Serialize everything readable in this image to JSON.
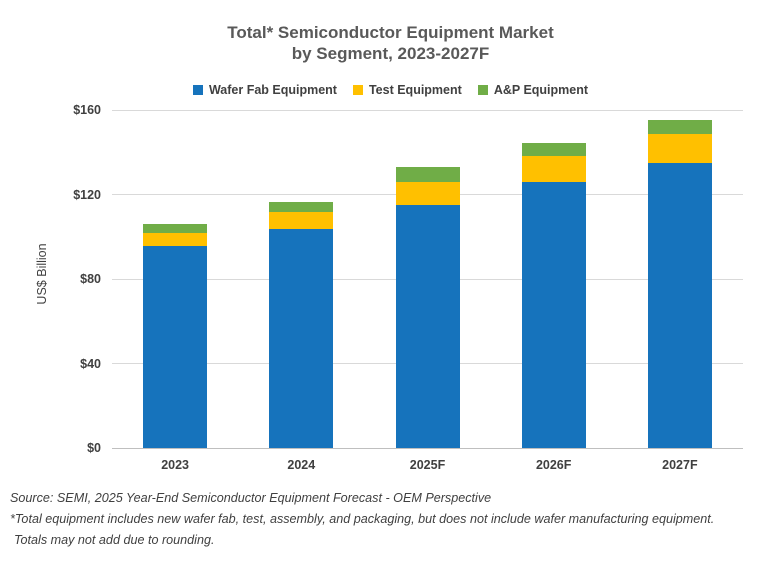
{
  "chart_data": {
    "type": "bar",
    "stacked": true,
    "title": "Total* Semiconductor Equipment Market",
    "subtitle": "by Segment, 2023-2027F",
    "ylabel": "US$ Billion",
    "ylim": [
      0,
      160
    ],
    "yticks": [
      0,
      40,
      80,
      120,
      160
    ],
    "ytick_labels": [
      "$0",
      "$40",
      "$80",
      "$120",
      "$160"
    ],
    "categories": [
      "2023",
      "2024",
      "2025F",
      "2026F",
      "2027F"
    ],
    "series": [
      {
        "name": "Wafer Fab Equipment",
        "color": "#1673BC",
        "values": [
          95.5,
          103.5,
          115,
          126,
          135
        ]
      },
      {
        "name": "Test Equipment",
        "color": "#FFC000",
        "values": [
          6.5,
          8,
          11,
          12,
          13.5
        ]
      },
      {
        "name": "A&P Equipment",
        "color": "#70AD47",
        "values": [
          4,
          5,
          7,
          6.5,
          7
        ]
      }
    ],
    "totals": [
      106,
      116.5,
      133,
      144.5,
      155.5
    ],
    "legend_position": "top",
    "grid": true,
    "gridline_color": "#d9d9d9",
    "axis_color": "#bfbfbf"
  },
  "footnotes": {
    "source": "Source: SEMI, 2025 Year-End Semiconductor Equipment Forecast - OEM Perspective",
    "note1": "*Total equipment includes new wafer fab, test, assembly, and packaging, but does not include wafer manufacturing equipment.",
    "note2": "Totals may not add due to rounding."
  }
}
